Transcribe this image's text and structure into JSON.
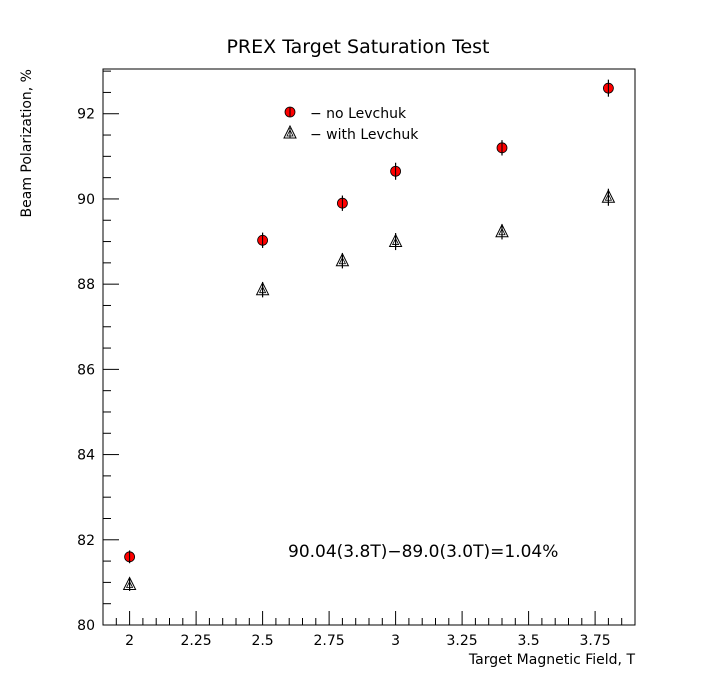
{
  "chart_data": {
    "type": "scatter",
    "title": "PREX Target Saturation Test",
    "xlabel": "Target Magnetic Field, T",
    "ylabel": "Beam Polarization, %",
    "xlim": [
      1.9,
      3.9
    ],
    "ylim": [
      80,
      93.05
    ],
    "x_ticks": [
      2,
      2.25,
      2.5,
      2.75,
      3,
      3.25,
      3.5,
      3.75
    ],
    "x_tick_labels": [
      "2",
      "2.25",
      "2.5",
      "2.75",
      "3",
      "3.25",
      "3.5",
      "3.75"
    ],
    "y_ticks": [
      80,
      82,
      84,
      86,
      88,
      90,
      92
    ],
    "y_tick_labels": [
      "80",
      "82",
      "84",
      "86",
      "88",
      "90",
      "92"
    ],
    "grid": false,
    "legend_position": "top-center",
    "annotation": "90.04(3.8T)−89.0(3.0T)=1.04%",
    "series": [
      {
        "name": "− no Levchuk",
        "marker": "circle",
        "color": "#ff0000",
        "points": [
          {
            "x": 2.0,
            "y": 81.6,
            "err": 0.15
          },
          {
            "x": 2.5,
            "y": 89.03,
            "err": 0.18
          },
          {
            "x": 2.8,
            "y": 89.9,
            "err": 0.18
          },
          {
            "x": 3.0,
            "y": 90.65,
            "err": 0.2
          },
          {
            "x": 3.4,
            "y": 91.2,
            "err": 0.18
          },
          {
            "x": 3.8,
            "y": 92.6,
            "err": 0.2
          }
        ]
      },
      {
        "name": "− with Levchuk",
        "marker": "triangle",
        "color": "#000000",
        "points": [
          {
            "x": 2.0,
            "y": 80.95,
            "err": 0.15
          },
          {
            "x": 2.5,
            "y": 87.87,
            "err": 0.18
          },
          {
            "x": 2.8,
            "y": 88.55,
            "err": 0.18
          },
          {
            "x": 3.0,
            "y": 89.0,
            "err": 0.2
          },
          {
            "x": 3.4,
            "y": 89.23,
            "err": 0.18
          },
          {
            "x": 3.8,
            "y": 90.04,
            "err": 0.2
          }
        ]
      }
    ]
  }
}
